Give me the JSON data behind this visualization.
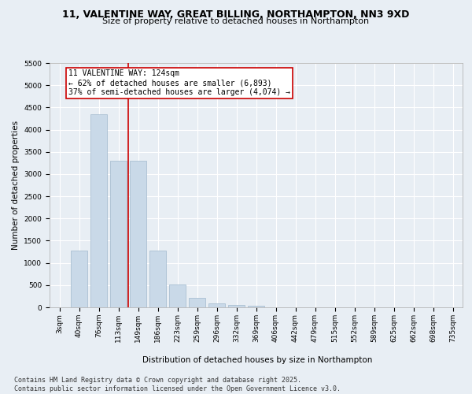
{
  "title_line1": "11, VALENTINE WAY, GREAT BILLING, NORTHAMPTON, NN3 9XD",
  "title_line2": "Size of property relative to detached houses in Northampton",
  "xlabel": "Distribution of detached houses by size in Northampton",
  "ylabel": "Number of detached properties",
  "categories": [
    "3sqm",
    "40sqm",
    "76sqm",
    "113sqm",
    "149sqm",
    "186sqm",
    "223sqm",
    "259sqm",
    "296sqm",
    "332sqm",
    "369sqm",
    "406sqm",
    "442sqm",
    "479sqm",
    "515sqm",
    "552sqm",
    "589sqm",
    "625sqm",
    "662sqm",
    "698sqm",
    "735sqm"
  ],
  "values": [
    0,
    1270,
    4350,
    3300,
    3300,
    1280,
    510,
    210,
    90,
    55,
    35,
    0,
    0,
    0,
    0,
    0,
    0,
    0,
    0,
    0,
    0
  ],
  "bar_color": "#c9d9e8",
  "bar_edge_color": "#a0b8cc",
  "vline_x_index": 3.5,
  "vline_color": "#cc0000",
  "annotation_text": "11 VALENTINE WAY: 124sqm\n← 62% of detached houses are smaller (6,893)\n37% of semi-detached houses are larger (4,074) →",
  "annotation_box_color": "#ffffff",
  "annotation_box_edge_color": "#cc0000",
  "ylim": [
    0,
    5500
  ],
  "yticks": [
    0,
    500,
    1000,
    1500,
    2000,
    2500,
    3000,
    3500,
    4000,
    4500,
    5000,
    5500
  ],
  "footer_text": "Contains HM Land Registry data © Crown copyright and database right 2025.\nContains public sector information licensed under the Open Government Licence v3.0.",
  "background_color": "#e8eef4",
  "plot_background_color": "#e8eef4",
  "grid_color": "#ffffff",
  "title_fontsize": 9,
  "subtitle_fontsize": 8,
  "axis_label_fontsize": 7.5,
  "tick_fontsize": 6.5,
  "annotation_fontsize": 7,
  "footer_fontsize": 6
}
